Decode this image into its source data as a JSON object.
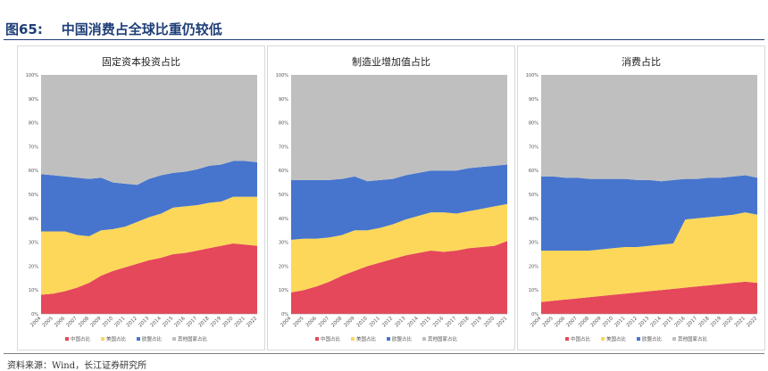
{
  "figure": {
    "number": "图65:",
    "title": "中国消费占全球比重仍较低",
    "source": "资料来源：Wind，长江证券研究所"
  },
  "colors": {
    "china": "#e5485a",
    "us": "#fcd75a",
    "europe": "#4775cd",
    "other": "#bfbfbf"
  },
  "chart_data": [
    {
      "type": "area",
      "stacked": true,
      "title": "固定资本投资占比",
      "x": [
        "2004",
        "2005",
        "2006",
        "2007",
        "2008",
        "2009",
        "2010",
        "2011",
        "2012",
        "2013",
        "2014",
        "2015",
        "2016",
        "2017",
        "2018",
        "2019",
        "2020",
        "2021",
        "2022"
      ],
      "ylim": [
        0,
        100
      ],
      "yticks": [
        "0%",
        "10%",
        "20%",
        "30%",
        "40%",
        "50%",
        "60%",
        "70%",
        "80%",
        "90%",
        "100%"
      ],
      "legend_position": "bottom",
      "series": [
        {
          "name": "中国占比",
          "values": [
            8,
            8.5,
            9.5,
            11,
            13,
            16,
            18,
            19.5,
            21,
            22.5,
            23.5,
            25,
            25.5,
            26.5,
            27.5,
            28.5,
            29.5,
            29,
            28.5
          ]
        },
        {
          "name": "美国占比",
          "values": [
            26.5,
            26,
            25,
            22,
            19.5,
            19,
            17.5,
            17,
            17.5,
            18,
            18.5,
            19.5,
            19.5,
            19,
            19,
            18.5,
            19.5,
            20,
            20.5
          ]
        },
        {
          "name": "欧盟占比",
          "values": [
            24,
            23.5,
            23,
            24,
            24,
            22,
            19.5,
            18,
            15.5,
            16,
            16,
            14.5,
            14.5,
            15,
            15.5,
            15.5,
            15,
            15,
            14.5
          ]
        },
        {
          "name": "其他国家占比",
          "values": [
            41.5,
            42,
            42.5,
            43,
            43.5,
            43,
            45,
            45.5,
            46,
            43.5,
            42,
            41,
            40.5,
            39.5,
            38,
            37.5,
            36,
            36,
            36.5
          ]
        }
      ]
    },
    {
      "type": "area",
      "stacked": true,
      "title": "制造业增加值占比",
      "x": [
        "2004",
        "2005",
        "2006",
        "2007",
        "2008",
        "2009",
        "2010",
        "2011",
        "2012",
        "2013",
        "2014",
        "2015",
        "2016",
        "2017",
        "2018",
        "2019",
        "2020",
        "2021"
      ],
      "ylim": [
        0,
        100
      ],
      "yticks": [
        "0%",
        "10%",
        "20%",
        "30%",
        "40%",
        "50%",
        "60%",
        "70%",
        "80%",
        "90%",
        "100%"
      ],
      "legend_position": "bottom",
      "series": [
        {
          "name": "中国占比",
          "values": [
            9,
            10,
            11.5,
            13.5,
            16,
            18,
            20,
            21.5,
            23,
            24.5,
            25.5,
            26.5,
            26,
            26.5,
            27.5,
            28,
            28.5,
            30.5
          ]
        },
        {
          "name": "美国占比",
          "values": [
            22,
            21.5,
            20,
            18.5,
            17,
            17,
            15,
            14.5,
            14.5,
            15,
            15.5,
            16,
            16.5,
            15.5,
            15.5,
            16,
            16.5,
            15.5
          ]
        },
        {
          "name": "欧盟占比",
          "values": [
            25,
            24.5,
            24.5,
            24,
            23.5,
            22.5,
            20.5,
            20,
            19,
            18.5,
            18,
            17.5,
            17.5,
            18,
            18,
            17.5,
            17,
            16.5
          ]
        },
        {
          "name": "其他国家占比",
          "values": [
            44,
            44,
            44,
            44,
            43.5,
            42.5,
            44.5,
            44,
            43.5,
            42,
            41,
            40,
            40,
            40,
            39,
            38.5,
            38,
            37.5
          ]
        }
      ]
    },
    {
      "type": "area",
      "stacked": true,
      "title": "消费占比",
      "x": [
        "2004",
        "2005",
        "2006",
        "2007",
        "2008",
        "2009",
        "2010",
        "2011",
        "2012",
        "2013",
        "2014",
        "2015",
        "2016",
        "2017",
        "2018",
        "2019",
        "2020",
        "2021",
        "2022"
      ],
      "ylim": [
        0,
        100
      ],
      "yticks": [
        "0%",
        "10%",
        "20%",
        "30%",
        "40%",
        "50%",
        "60%",
        "70%",
        "80%",
        "90%",
        "100%"
      ],
      "legend_position": "bottom",
      "series": [
        {
          "name": "中国占比",
          "values": [
            5,
            5.5,
            6,
            6.5,
            7,
            7.5,
            8,
            8.5,
            9,
            9.5,
            10,
            10.5,
            11,
            11.5,
            12,
            12.5,
            13,
            13.5,
            13
          ]
        },
        {
          "name": "美国占比",
          "values": [
            21.5,
            21,
            20.5,
            20,
            19.5,
            19.5,
            19.5,
            19.5,
            19,
            19,
            19,
            19,
            28.5,
            28.5,
            28.5,
            28.5,
            28.5,
            29,
            28.5
          ]
        },
        {
          "name": "欧盟占比",
          "values": [
            31,
            31,
            30.5,
            30.5,
            30,
            29.5,
            29,
            28.5,
            28,
            27.5,
            26.5,
            26.5,
            17,
            16.5,
            16.5,
            16,
            16,
            15.5,
            15.5
          ]
        },
        {
          "name": "其他国家占比",
          "values": [
            42.5,
            42.5,
            43,
            43,
            43.5,
            43.5,
            43.5,
            43.5,
            44,
            44,
            44.5,
            44,
            43.5,
            43.5,
            43,
            43,
            42.5,
            42,
            43
          ]
        }
      ]
    }
  ]
}
